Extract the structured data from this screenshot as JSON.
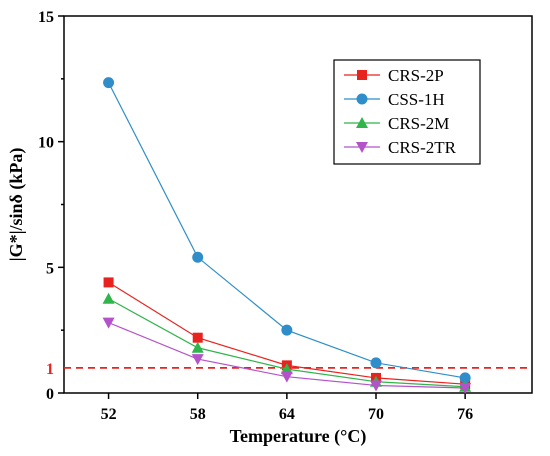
{
  "chart_data": {
    "type": "line",
    "title": "",
    "xlabel": "Temperature (°C)",
    "ylabel": "|G*|/sinδ  (kPa)",
    "x": [
      52,
      58,
      64,
      70,
      76
    ],
    "xticks": [
      "52",
      "58",
      "64",
      "70",
      "76"
    ],
    "xlim": [
      49,
      80.5
    ],
    "ylim": [
      0,
      15
    ],
    "yticks": [
      0,
      5,
      10,
      15
    ],
    "reference_line": {
      "y": 1,
      "label": "1",
      "color": "#e8221f",
      "style": "dashed"
    },
    "legend_position": "top-right",
    "grid": false,
    "series": [
      {
        "name": "CRS-2P",
        "marker": "square",
        "color": "#e8221f",
        "values": [
          4.4,
          2.2,
          1.1,
          0.6,
          0.35
        ]
      },
      {
        "name": "CSS-1H",
        "marker": "circle",
        "color": "#2f8ec9",
        "values": [
          12.35,
          5.4,
          2.5,
          1.2,
          0.6
        ]
      },
      {
        "name": "CRS-2M",
        "marker": "triangle-up",
        "color": "#2fb54a",
        "values": [
          3.75,
          1.8,
          0.95,
          0.45,
          0.25
        ]
      },
      {
        "name": "CRS-2TR",
        "marker": "triangle-down",
        "color": "#b453c9",
        "values": [
          2.8,
          1.35,
          0.65,
          0.3,
          0.2
        ]
      }
    ]
  }
}
